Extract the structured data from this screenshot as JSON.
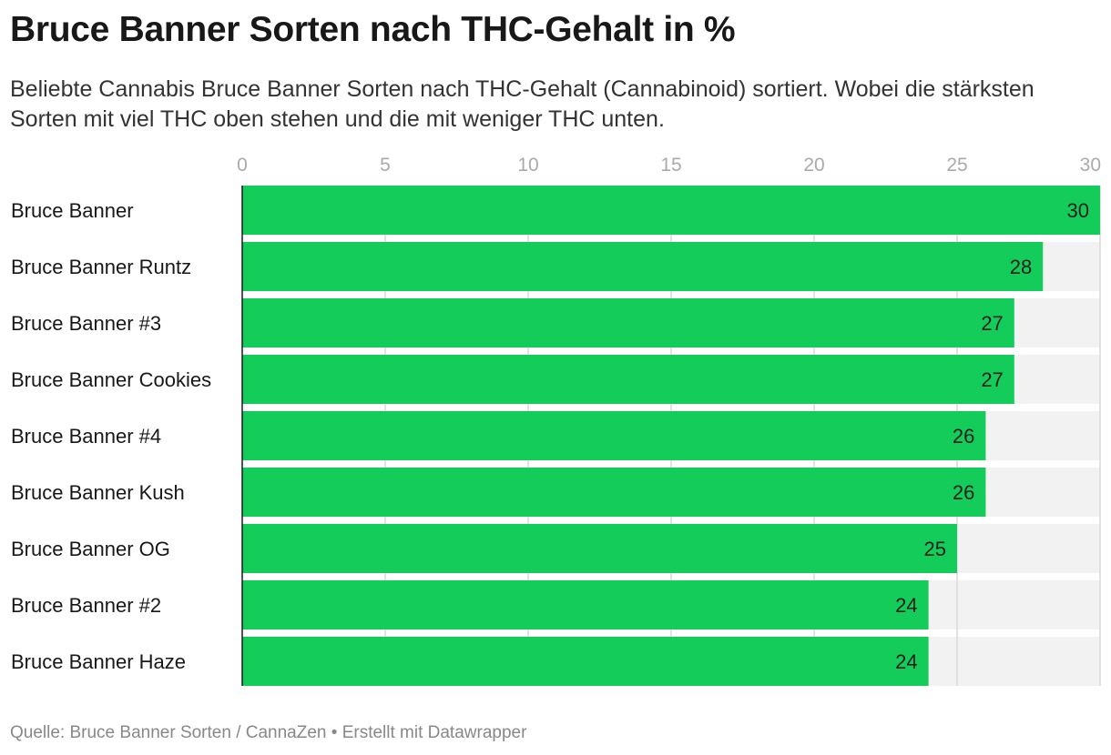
{
  "header": {
    "title": "Bruce Banner Sorten nach THC-Gehalt in %",
    "subtitle": "Beliebte Cannabis Bruce Banner Sorten nach THC-Gehalt (Cannabinoid) sortiert. Wobei die stärksten Sorten mit viel THC oben stehen und die mit weniger THC unten."
  },
  "footer": {
    "source": "Quelle: Bruce Banner Sorten / CannaZen • Erstellt mit Datawrapper"
  },
  "chart_data": {
    "type": "bar",
    "orientation": "horizontal",
    "title": "Bruce Banner Sorten nach THC-Gehalt in %",
    "subtitle": "Beliebte Cannabis Bruce Banner Sorten nach THC-Gehalt (Cannabinoid) sortiert. Wobei die stärksten Sorten mit viel THC oben stehen und die mit weniger THC unten.",
    "categories": [
      "Bruce Banner",
      "Bruce Banner Runtz",
      "Bruce Banner #3",
      "Bruce Banner Cookies",
      "Bruce Banner #4",
      "Bruce Banner Kush",
      "Bruce Banner OG",
      "Bruce Banner #2",
      "Bruce Banner Haze"
    ],
    "values": [
      30,
      28,
      27,
      27,
      26,
      26,
      25,
      24,
      24
    ],
    "xlim": [
      0,
      30
    ],
    "ticks": [
      "0",
      "5",
      "10",
      "15",
      "20",
      "25",
      "30"
    ],
    "tick_values": [
      0,
      5,
      10,
      15,
      20,
      25,
      30
    ],
    "axis_position": "top",
    "data_labels": true,
    "grid": true,
    "colors": {
      "bar": "#13cc5a",
      "track": "#f2f2f2",
      "grid": "#d9d9d9",
      "axis": "#181818"
    }
  }
}
